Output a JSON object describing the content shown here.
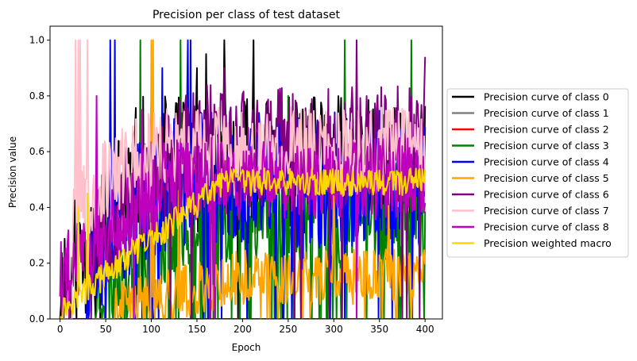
{
  "chart_data": {
    "type": "line",
    "title": "Precision per class of test dataset",
    "xlabel": "Epoch",
    "ylabel": "Precision value",
    "xlim": [
      -11,
      419
    ],
    "ylim": [
      0.0,
      1.05
    ],
    "xticks": [
      0,
      50,
      100,
      150,
      200,
      250,
      300,
      350,
      400
    ],
    "yticks": [
      0.0,
      0.2,
      0.4,
      0.6,
      0.8,
      1.0
    ],
    "tick_labels_x": [
      "0",
      "50",
      "100",
      "150",
      "200",
      "250",
      "300",
      "350",
      "400"
    ],
    "tick_labels_y": [
      "0.0",
      "0.2",
      "0.4",
      "0.6",
      "0.8",
      "1.0"
    ],
    "grid": false,
    "legend": "outside-right",
    "series": [
      {
        "name": "Precision curve of class 0",
        "color": "#000000",
        "gen": {
          "start": 0,
          "ramp_end": 90,
          "base_start": 0.12,
          "base_end": 0.55,
          "amp": 0.25,
          "zero_prob": 0.04,
          "spikes": [
            [
              180,
              1.0
            ],
            [
              212,
              1.0
            ],
            [
              150,
              0.9
            ],
            [
              160,
              0.95
            ]
          ],
          "seed": 11
        }
      },
      {
        "name": "Precision curve of class 1",
        "color": "#808080",
        "gen": {
          "const": 0.0
        }
      },
      {
        "name": "Precision curve of class 2",
        "color": "#ff0000",
        "gen": {
          "const": 0.0
        }
      },
      {
        "name": "Precision curve of class 3",
        "color": "#008000",
        "gen": {
          "start": 40,
          "ramp_end": 150,
          "base_start": 0.12,
          "base_end": 0.38,
          "amp": 0.18,
          "zero_prob": 0.12,
          "spikes": [
            [
              88,
              1.0
            ],
            [
              132,
              1.0
            ],
            [
              312,
              1.0
            ],
            [
              385,
              1.0
            ],
            [
              250,
              0.8
            ]
          ],
          "seed": 23
        }
      },
      {
        "name": "Precision curve of class 4",
        "color": "#0000ff",
        "gen": {
          "start": 30,
          "ramp_end": 120,
          "base_start": 0.25,
          "base_end": 0.5,
          "amp": 0.25,
          "zero_prob": 0.05,
          "spikes": [
            [
              55,
              1.0
            ],
            [
              60,
              1.0
            ],
            [
              140,
              1.0
            ],
            [
              143,
              1.0
            ],
            [
              112,
              0.9
            ]
          ],
          "seed": 37
        }
      },
      {
        "name": "Precision curve of class 5",
        "color": "#ffa500",
        "gen": {
          "start": 60,
          "ramp_end": 200,
          "base_start": 0.03,
          "base_end": 0.15,
          "amp": 0.1,
          "zero_prob": 0.05,
          "spikes": [
            [
              100,
              1.0
            ],
            [
              102,
              1.0
            ],
            [
              130,
              0.6
            ],
            [
              300,
              0.55
            ],
            [
              360,
              0.45
            ]
          ],
          "seed": 41
        }
      },
      {
        "name": "Precision curve of class 6",
        "color": "#800080",
        "gen": {
          "start": 35,
          "ramp_end": 150,
          "base_start": 0.3,
          "base_end": 0.62,
          "amp": 0.22,
          "zero_prob": 0.03,
          "spikes": [
            [
              325,
              1.0
            ],
            [
              400,
              0.94
            ],
            [
              180,
              0.9
            ]
          ],
          "seed": 53
        }
      },
      {
        "name": "Precision curve of class 7",
        "color": "#ffc0cb",
        "gen": {
          "start": 14,
          "ramp_end": 100,
          "base_start": 0.4,
          "base_end": 0.6,
          "amp": 0.16,
          "zero_prob": 0.0,
          "spikes": [
            [
              17,
              1.0
            ],
            [
              20,
              1.0
            ],
            [
              22,
              1.0
            ],
            [
              30,
              1.0
            ],
            [
              16,
              0.43
            ]
          ],
          "seed": 67
        }
      },
      {
        "name": "Precision curve of class 8",
        "color": "#bf00bf",
        "gen": {
          "start": 0,
          "ramp_end": 120,
          "base_start": 0.15,
          "base_end": 0.5,
          "amp": 0.15,
          "zero_prob": 0.02,
          "spikes": [
            [
              40,
              0.8
            ],
            [
              90,
              0.75
            ]
          ],
          "seed": 79
        }
      },
      {
        "name": "Precision weighted macro",
        "color": "#ffd700",
        "gen": {
          "start": 0,
          "ramp_end": 180,
          "base_start": 0.03,
          "base_end": 0.49,
          "amp": 0.05,
          "zero_prob": 0.0,
          "spikes": [
            [
              20,
              0.4
            ],
            [
              30,
              0.45
            ]
          ],
          "seed": 97
        }
      }
    ]
  }
}
